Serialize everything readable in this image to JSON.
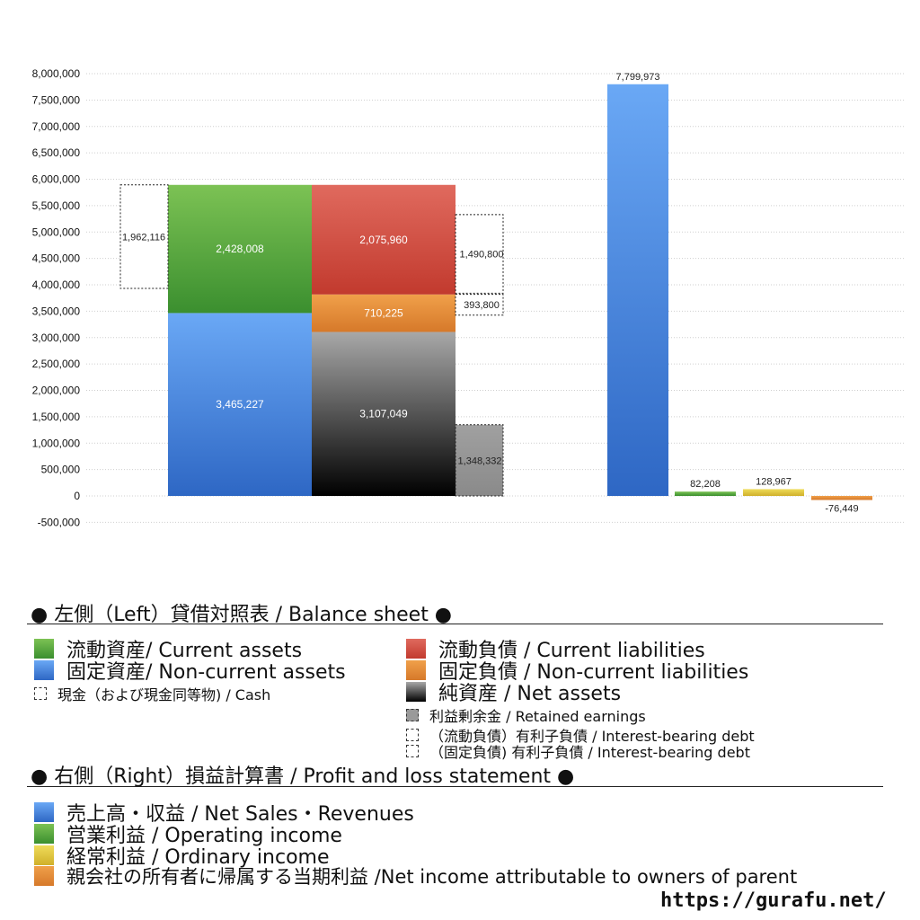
{
  "chart_data": {
    "type": "bar",
    "y_axis": {
      "min": -500000,
      "max": 8000000,
      "step": 500000,
      "grid": true
    },
    "left_balance_sheet": {
      "assets_column": [
        {
          "name": "固定資産/ Non-current assets",
          "value": 3465227,
          "label": "3,465,227",
          "color": "#3b7ad9"
        },
        {
          "name": "流動資産/ Current assets",
          "value": 2428008,
          "label": "2,428,008",
          "color": "#4fa03a"
        }
      ],
      "cash": {
        "name": "現金（および現金同等物) / Cash",
        "value": 1962116,
        "label": "1,962,116",
        "bottom": 3930892
      },
      "liabilities_column": [
        {
          "name": "純資産 / Net assets",
          "value": 3107049,
          "label": "3,107,049",
          "color": "#555555"
        },
        {
          "name": "固定負債 / Non-current liabilities",
          "value": 710225,
          "label": "710,225",
          "color": "#e28a2e"
        },
        {
          "name": "流動負債 / Current liabilities",
          "value": 2075960,
          "label": "2,075,960",
          "color": "#d24a3e"
        }
      ],
      "retained_earnings": {
        "name": "利益剰余金 / Retained earnings",
        "value": 1348332,
        "label": "1,348,332"
      },
      "interest_bearing_debt_noncurrent": {
        "value": 393800,
        "label": "393,800",
        "bottom": 3425000
      },
      "interest_bearing_debt_current": {
        "value": 1490800,
        "label": "1,490,800",
        "bottom": 3840000
      }
    },
    "right_profit_loss": [
      {
        "name": "売上高・収益 / Net Sales・Revenues",
        "value": 7799973,
        "label": "7,799,973",
        "color": "#3b7ad9"
      },
      {
        "name": "営業利益 / Operating income",
        "value": 82208,
        "label": "82,208",
        "color": "#4fa03a"
      },
      {
        "name": "経常利益 / Ordinary income",
        "value": 128967,
        "label": "128,967",
        "color": "#d9c23a"
      },
      {
        "name": "親会社の所有者に帰属する当期利益 /Net income attributable to owners of parent",
        "value": -76449,
        "label": "-76,449",
        "color": "#e28a2e"
      }
    ]
  },
  "legend": {
    "left_title": "● 左側（Left）貸借対照表 / Balance sheet ●",
    "right_title": "● 右側（Right）損益計算書 / Profit and loss statement ●",
    "left_items": {
      "current_assets": "流動資産/ Current assets",
      "noncurrent_assets": "固定資産/ Non-current assets",
      "cash": "現金（および現金同等物) / Cash",
      "current_liabilities": "流動負債 /  Current liabilities",
      "noncurrent_liabilities": "固定負債 / Non-current liabilities",
      "net_assets": "純資産 / Net assets",
      "retained_earnings": "利益剰余金 / Retained earnings",
      "ibd_current": "（流動負債）有利子負債 / Interest-bearing debt",
      "ibd_noncurrent": "（固定負債) 有利子負債 / Interest-bearing debt"
    },
    "right_items": {
      "sales": "売上高・収益 / Net Sales・Revenues",
      "operating": "営業利益 / Operating income",
      "ordinary": "経常利益 / Ordinary income",
      "net_income": "親会社の所有者に帰属する当期利益 /Net income attributable to owners of parent"
    },
    "colors": {
      "green": "#4fa03a",
      "blue": "#3b7ad9",
      "red": "#d24a3e",
      "orange": "#e28a2e",
      "yellow": "#d9c23a",
      "gray": "#9a9a9a"
    }
  },
  "url": "https://gurafu.net/"
}
